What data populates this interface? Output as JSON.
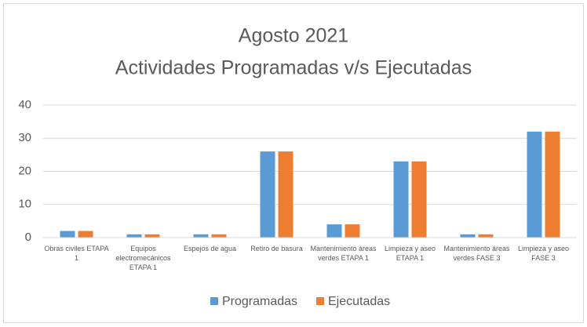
{
  "chart_data": {
    "type": "bar",
    "title": "Agosto 2021",
    "subtitle": "Actividades Programadas v/s Ejecutadas",
    "categories": [
      "Obras civiles ETAPA 1",
      "Equipos electromecánicos ETAPA 1",
      "Espejos de agua",
      "Retiro de basura",
      "Mantenimiento áreas verdes ETAPA 1",
      "Limpieza y aseo ETAPA 1",
      "Mantenimiento áreas verdes FASE 3",
      "Limpieza y aseo FASE 3"
    ],
    "series": [
      {
        "name": "Programadas",
        "color": "#5b9bd5",
        "values": [
          2,
          1,
          1,
          26,
          4,
          23,
          1,
          32
        ]
      },
      {
        "name": "Ejecutadas",
        "color": "#ed7d31",
        "values": [
          2,
          1,
          1,
          26,
          4,
          23,
          1,
          32
        ]
      }
    ],
    "ylim": [
      0,
      40
    ],
    "yticks": [
      0,
      10,
      20,
      30,
      40
    ],
    "grid": true,
    "legend": "bottom"
  }
}
